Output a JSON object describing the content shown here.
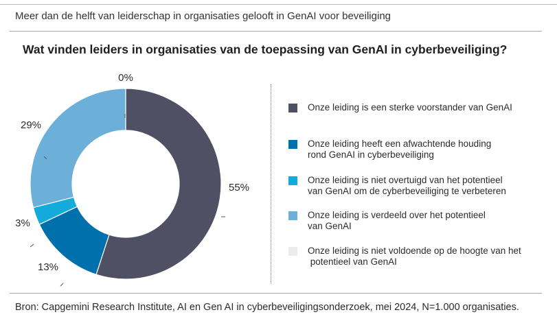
{
  "header": {
    "subtitle": "Meer dan de helft van leiderschap in organisaties gelooft in GenAI voor beveiliging"
  },
  "chart_data": {
    "type": "pie",
    "variant": "donut",
    "title": "Wat vinden leiders in organisaties van de toepassing van GenAI in cyberbeveiliging?",
    "unit": "%",
    "legend_position": "right",
    "slices": [
      {
        "label": "Onze leiding is een sterke voorstander van GenAI",
        "label_lines": [
          "Onze leiding is een sterke voorstander van GenAI"
        ],
        "value": 55,
        "display": "55%",
        "color": "#4f5064"
      },
      {
        "label": "Onze leiding heeft een afwachtende houding rond GenAI in cyberbeveiliging",
        "label_lines": [
          "Onze leiding heeft een afwachtende houding",
          "rond GenAI in cyberbeveiliging"
        ],
        "value": 13,
        "display": "13%",
        "color": "#0070ad"
      },
      {
        "label": "Onze leiding is niet overtuigd van het potentieel van GenAI om de cyberbeveiliging te verbeteren",
        "label_lines": [
          "Onze leiding is niet overtuigd van het potentieel",
          "van GenAI om de cyberbeveiliging te verbeteren"
        ],
        "value": 3,
        "display": "3%",
        "color": "#12abdb"
      },
      {
        "label": "Onze leiding is verdeeld over het potentieel van GenAI",
        "label_lines": [
          "Onze leiding is verdeeld over het potentieel",
          "van GenAI"
        ],
        "value": 29,
        "display": "29%",
        "color": "#6cafd9"
      },
      {
        "label": "Onze leiding is niet voldoende op de hoogte van het potentieel van GenAI",
        "label_lines": [
          "Onze leiding is niet voldoende op de hoogte van het",
          " potentieel van GenAI"
        ],
        "value": 0,
        "display": "0%",
        "color": "#ececec"
      }
    ]
  },
  "footer": {
    "source": "Bron: Capgemini Research Institute, AI en Gen AI in cyberbeveiligingsonderzoek, mei 2024, N=1.000 organisaties."
  }
}
